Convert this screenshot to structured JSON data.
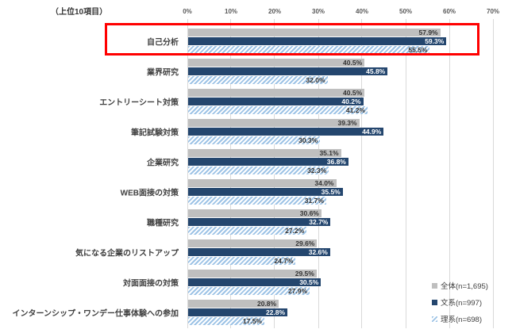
{
  "title": "（上位10項目）",
  "colors": {
    "overall_bar": "#BFBFBF",
    "humanities_bar": "#24466E",
    "sciences_stripe": "#9DC3E6",
    "highlight_box": "#FF0000",
    "gridline": "#D9D9D9",
    "label_text": "#3F3F3F",
    "tick_text": "#595959",
    "value_on_dark": "#FFFFFF"
  },
  "legend": {
    "position": "bottom-right",
    "entries": [
      {
        "label": "全体(n=1,695)",
        "swatch": "overall"
      },
      {
        "label": "文系(n=997)",
        "swatch": "humanities"
      },
      {
        "label": "理系(n=698)",
        "swatch": "sciences"
      }
    ]
  },
  "chart_data": {
    "type": "bar",
    "orientation": "horizontal",
    "title": "（上位10項目）",
    "xlabel": "",
    "ylabel": "",
    "xlim": [
      0,
      70
    ],
    "x_ticks": [
      "0%",
      "10%",
      "20%",
      "30%",
      "40%",
      "50%",
      "60%",
      "70%"
    ],
    "grid": true,
    "data_labels": true,
    "value_unit": "%",
    "highlighted_category": "自己分析",
    "categories": [
      "自己分析",
      "業界研究",
      "エントリーシート対策",
      "筆記試験対策",
      "企業研究",
      "WEB面接の対策",
      "職種研究",
      "気になる企業のリストアップ",
      "対面面接の対策",
      "インターンシップ・ワンデー仕事体験への参加"
    ],
    "series": [
      {
        "name": "全体(n=1,695)",
        "key": "overall",
        "values": [
          57.9,
          40.5,
          40.5,
          39.3,
          35.1,
          34.0,
          30.6,
          29.6,
          29.5,
          20.8
        ]
      },
      {
        "name": "文系(n=997)",
        "key": "humanities",
        "values": [
          59.3,
          45.8,
          40.2,
          44.9,
          36.8,
          35.5,
          32.7,
          32.6,
          30.5,
          22.8
        ]
      },
      {
        "name": "理系(n=698)",
        "key": "sciences",
        "values": [
          55.5,
          32.0,
          41.2,
          30.3,
          32.3,
          31.7,
          27.2,
          24.7,
          27.9,
          17.5
        ]
      }
    ]
  }
}
